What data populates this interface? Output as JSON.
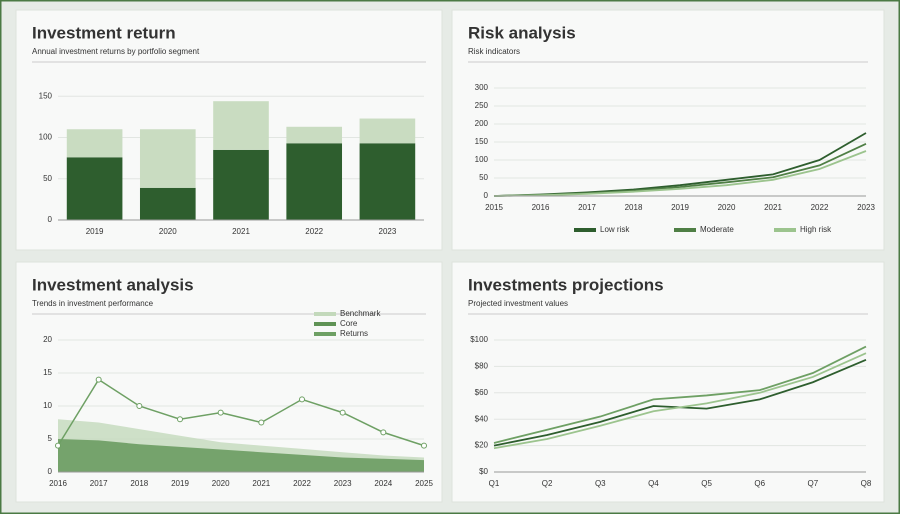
{
  "chart_data": [
    {
      "type": "bar",
      "title": "Investment return",
      "subtitle": "Annual investment returns by portfolio segment",
      "categories": [
        "2019",
        "2020",
        "2021",
        "2022",
        "2023"
      ],
      "series": [
        {
          "color": "#2e5e2e",
          "values": [
            76,
            39,
            85,
            93,
            93
          ]
        },
        {
          "color": "#c9dcc1",
          "values": [
            34,
            71,
            59,
            20,
            30
          ]
        }
      ],
      "ylim": [
        0,
        160
      ],
      "yticks": [
        0,
        50,
        100,
        150
      ],
      "grid": true
    },
    {
      "type": "line",
      "title": "Risk analysis",
      "subtitle": "Risk indicators",
      "categories": [
        "2015",
        "2016",
        "2017",
        "2018",
        "2019",
        "2020",
        "2021",
        "2022",
        "2023"
      ],
      "series": [
        {
          "name": "Low risk",
          "color": "#2e5e2e",
          "values": [
            0,
            4,
            10,
            18,
            30,
            45,
            60,
            100,
            175
          ]
        },
        {
          "name": "Moderate",
          "color": "#4f7f45",
          "values": [
            0,
            3,
            8,
            15,
            25,
            38,
            52,
            85,
            145
          ]
        },
        {
          "name": "High risk",
          "color": "#9cc48e",
          "values": [
            0,
            2,
            6,
            12,
            20,
            30,
            45,
            75,
            125
          ]
        }
      ],
      "ylim": [
        0,
        300
      ],
      "yticks": [
        0,
        50,
        100,
        150,
        200,
        250,
        300
      ],
      "grid": true,
      "legend": "bottom"
    },
    {
      "type": "area",
      "title": "Investment analysis",
      "subtitle": "Trends in investment performance",
      "categories": [
        "2016",
        "2017",
        "2018",
        "2019",
        "2020",
        "2021",
        "2022",
        "2023",
        "2024",
        "2025"
      ],
      "series": [
        {
          "name": "Benchmark",
          "color": "#c3d9bb",
          "area": true,
          "values": [
            8,
            7.5,
            6.5,
            5.5,
            4.5,
            4,
            3.5,
            3,
            2.5,
            2.2
          ]
        },
        {
          "name": "Core",
          "color": "#5f9355",
          "area": true,
          "values": [
            5,
            4.8,
            4.2,
            3.8,
            3.4,
            3,
            2.6,
            2.2,
            2,
            1.8
          ]
        },
        {
          "name": "Returns",
          "color": "#6ea064",
          "values": [
            4,
            14,
            10,
            8,
            9,
            7.5,
            11,
            9,
            6,
            4
          ]
        }
      ],
      "ylim": [
        0,
        20
      ],
      "yticks": [
        0,
        5,
        10,
        15,
        20
      ],
      "grid": true,
      "legend": "top-right"
    },
    {
      "type": "line",
      "title": "Investments projections",
      "subtitle": "Projected investment values",
      "categories": [
        "Q1",
        "Q2",
        "Q3",
        "Q4",
        "Q5",
        "Q6",
        "Q7",
        "Q8"
      ],
      "series": [
        {
          "color": "#2e5e2e",
          "values": [
            20,
            28,
            38,
            50,
            48,
            55,
            68,
            85
          ]
        },
        {
          "color": "#6ea064",
          "values": [
            22,
            32,
            42,
            55,
            58,
            62,
            75,
            95
          ]
        },
        {
          "color": "#9cc48e",
          "values": [
            18,
            25,
            35,
            46,
            52,
            60,
            72,
            90
          ]
        }
      ],
      "ylim": [
        0,
        100
      ],
      "yticks": [
        {
          "value": 0,
          "label": "$0"
        },
        {
          "value": 20,
          "label": "$20"
        },
        {
          "value": 40,
          "label": "$40"
        },
        {
          "value": 60,
          "label": "$60"
        },
        {
          "value": 80,
          "label": "$80"
        },
        {
          "value": 100,
          "label": "$100"
        }
      ],
      "grid": true
    }
  ]
}
